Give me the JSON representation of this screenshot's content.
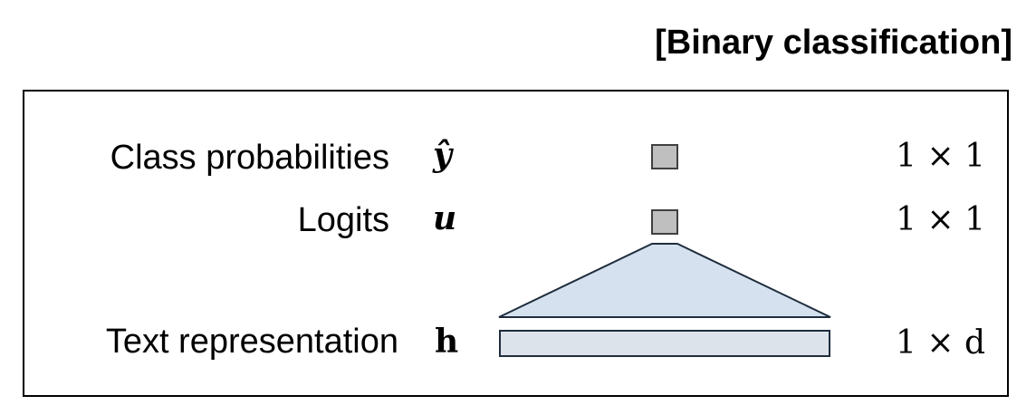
{
  "header": {
    "title": "[Binary classification]"
  },
  "rows": [
    {
      "label": "Class probabilities",
      "symbol": "ŷ",
      "dimension": "1 × 1"
    },
    {
      "label": "Logits",
      "symbol": "u",
      "dimension": "1 × 1"
    },
    {
      "label": "Text representation",
      "symbol": "h",
      "dimension": "1 × d"
    }
  ],
  "colors": {
    "unit_fill": "#bfbfbf",
    "unit_stroke": "#404040",
    "layer_fill": "#dde3ea",
    "layer_stroke": "#1f2d3d",
    "projection_fill": "#d6e1ef",
    "projection_stroke": "#1f2d3d"
  }
}
